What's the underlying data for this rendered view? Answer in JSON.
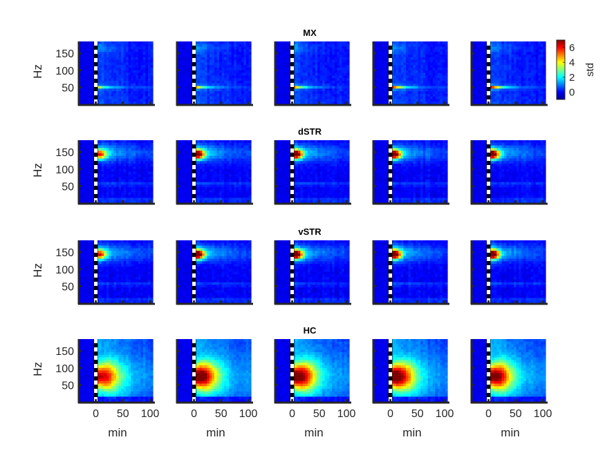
{
  "chart_data": {
    "type": "heatmap",
    "rows": [
      {
        "title": "MX",
        "ylabel": "Hz",
        "peak_hz": 50,
        "peaks": [
          2.6,
          3.6,
          4.4,
          5.8,
          6.6
        ]
      },
      {
        "title": "dSTR",
        "ylabel": "Hz",
        "peak_hz": 143,
        "peaks": [
          4.2,
          6.2,
          6.5,
          6.6,
          6.8
        ]
      },
      {
        "title": "vSTR",
        "ylabel": "Hz",
        "peak_hz": 143,
        "peaks": [
          4.4,
          6.6,
          6.9,
          7.0,
          7.0
        ]
      },
      {
        "title": "HC",
        "ylabel": "Hz",
        "peak_hz": 75,
        "peaks": [
          4.2,
          5.2,
          5.2,
          5.3,
          4.9
        ]
      }
    ],
    "columns": 5,
    "x_axis": {
      "label": "min",
      "ticks": [
        "0",
        "50",
        "100"
      ],
      "tick_values": [
        0,
        50,
        100
      ],
      "range": [
        -30,
        105
      ]
    },
    "y_axis": {
      "label": "Hz",
      "ticks": [
        "50",
        "100",
        "150"
      ],
      "tick_values": [
        50,
        100,
        150
      ],
      "range": [
        0,
        185
      ]
    },
    "stim_marker_min": 0,
    "colorbar": {
      "label": "std",
      "ticks": [
        "6",
        "4",
        "2",
        "0"
      ],
      "tick_values": [
        6,
        4,
        2,
        0
      ],
      "range": [
        -1,
        7
      ],
      "colormap": "jet"
    }
  }
}
